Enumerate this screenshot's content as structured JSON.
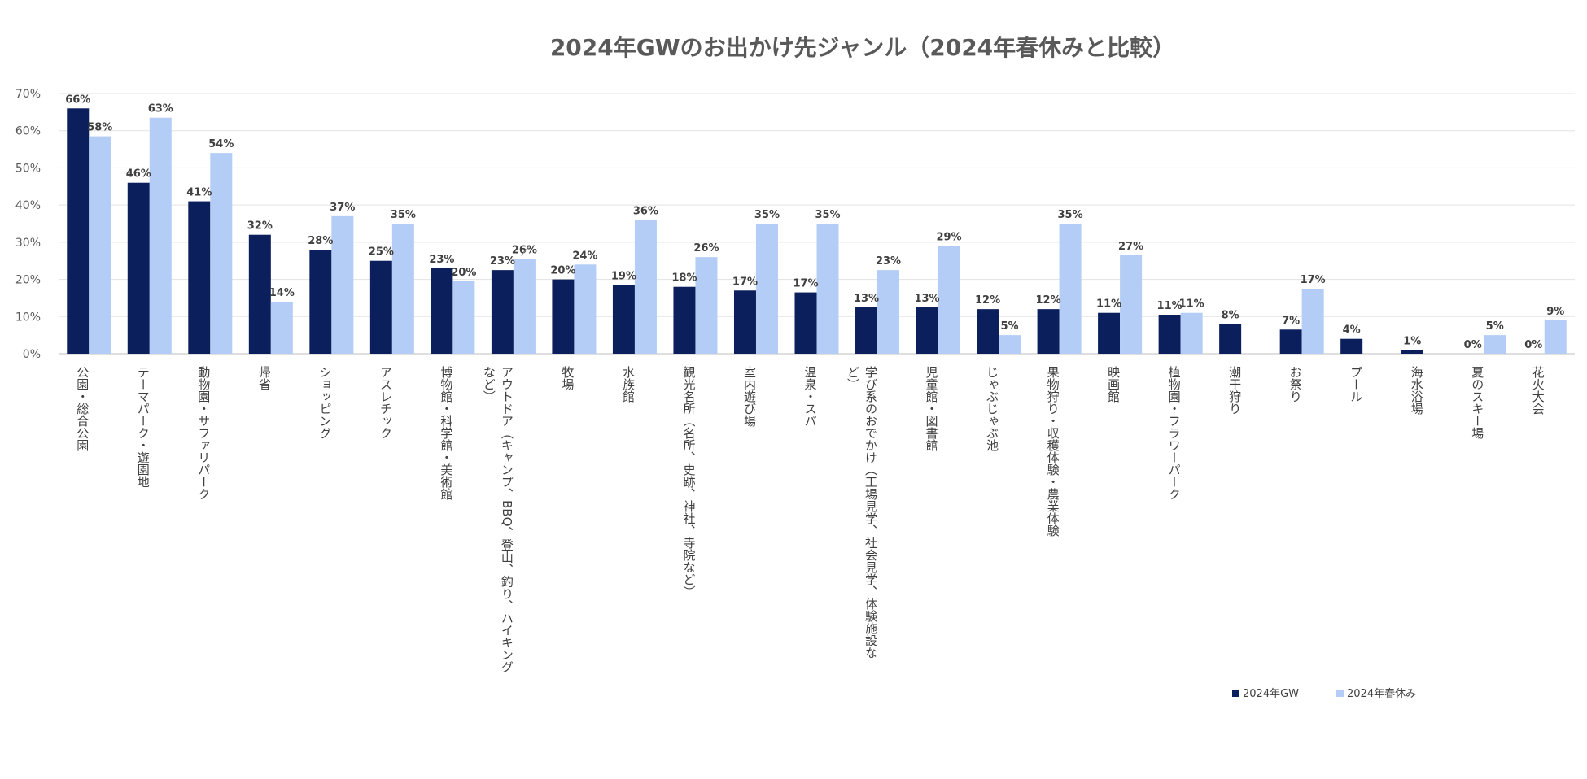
{
  "chart_data": {
    "type": "bar",
    "title": "2024年GWのお出かけ先ジャンル（2024年春休みと比較）",
    "xlabel": "",
    "ylabel": "",
    "ylim": [
      0,
      70
    ],
    "y_ticks": [
      "0%",
      "10%",
      "20%",
      "30%",
      "40%",
      "50%",
      "60%",
      "70%"
    ],
    "grid": true,
    "legend_position": "bottom-right",
    "categories": [
      [
        "公園・総合公園"
      ],
      [
        "テーマパーク・遊園地"
      ],
      [
        "動物園・サファリパーク"
      ],
      [
        "帰省"
      ],
      [
        "ショッピング"
      ],
      [
        "アスレチック"
      ],
      [
        "博物館・科学館・美術館"
      ],
      [
        "アウトドア（キャンプ、BBQ、登山、釣り、ハイキング",
        "など）"
      ],
      [
        "牧場"
      ],
      [
        "水族館"
      ],
      [
        "観光名所（名所、史跡、神社、寺院など）"
      ],
      [
        "室内遊び場"
      ],
      [
        "温泉・スパ"
      ],
      [
        "学び系のおでかけ（工場見学、社会見学、体験施設な",
        "ど）"
      ],
      [
        "児童館・図書館"
      ],
      [
        "じゃぶじゃぶ池"
      ],
      [
        "果物狩り・収穫体験・農業体験"
      ],
      [
        "映画館"
      ],
      [
        "植物園・フラワーパーク"
      ],
      [
        "潮干狩り"
      ],
      [
        "お祭り"
      ],
      [
        "プール"
      ],
      [
        "海水浴場"
      ],
      [
        "夏のスキー場"
      ],
      [
        "花火大会"
      ]
    ],
    "series": [
      {
        "name": "2024年GW",
        "color": "#0b1f5c",
        "values": [
          66,
          46,
          41,
          32,
          28,
          25,
          23,
          22.5,
          20,
          18.5,
          18,
          17,
          16.5,
          12.5,
          12.5,
          12,
          12,
          11,
          10.5,
          8,
          6.5,
          4,
          1,
          0,
          0
        ],
        "labels": [
          "66%",
          "46%",
          "41%",
          "32%",
          "28%",
          "25%",
          "23%",
          "23%",
          "20%",
          "19%",
          "18%",
          "17%",
          "17%",
          "13%",
          "13%",
          "12%",
          "12%",
          "11%",
          "11%",
          "8%",
          "7%",
          "4%",
          "1%",
          "0%",
          "0%"
        ]
      },
      {
        "name": "2024年春休み",
        "color": "#b4cdf6",
        "values": [
          58.5,
          63.5,
          54,
          14,
          37,
          35,
          19.5,
          25.5,
          24,
          36,
          26,
          35,
          35,
          22.5,
          29,
          5,
          35,
          26.5,
          11,
          null,
          17.5,
          null,
          null,
          5,
          9
        ],
        "labels": [
          "58%",
          "63%",
          "54%",
          "14%",
          "37%",
          "35%",
          "20%",
          "26%",
          "24%",
          "36%",
          "26%",
          "35%",
          "35%",
          "23%",
          "29%",
          "5%",
          "35%",
          "27%",
          "11%",
          null,
          "17%",
          null,
          null,
          "5%",
          "9%"
        ]
      }
    ]
  }
}
